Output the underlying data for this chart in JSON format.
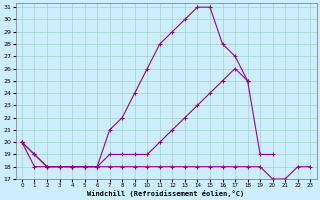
{
  "xlabel": "Windchill (Refroidissement éolien,°C)",
  "x": [
    0,
    1,
    2,
    3,
    4,
    5,
    6,
    7,
    8,
    9,
    10,
    11,
    12,
    13,
    14,
    15,
    16,
    17,
    18,
    19,
    20,
    21,
    22,
    23
  ],
  "line1": [
    20,
    19,
    18,
    18,
    18,
    18,
    18,
    21,
    22,
    24,
    26,
    28,
    29,
    30,
    31,
    31,
    28,
    27,
    25,
    null,
    null,
    null,
    null,
    null
  ],
  "line2": [
    20,
    19,
    18,
    18,
    18,
    18,
    18,
    19,
    19,
    19,
    19,
    20,
    21,
    22,
    23,
    24,
    25,
    26,
    25,
    19,
    19,
    null,
    null,
    null
  ],
  "line3": [
    20,
    18,
    18,
    18,
    18,
    18,
    18,
    18,
    18,
    18,
    18,
    18,
    18,
    18,
    18,
    18,
    18,
    18,
    18,
    18,
    17,
    17,
    18,
    18
  ],
  "ylim": [
    17,
    31
  ],
  "xlim": [
    -0.5,
    23.5
  ],
  "yticks": [
    17,
    18,
    19,
    20,
    21,
    22,
    23,
    24,
    25,
    26,
    27,
    28,
    29,
    30,
    31
  ],
  "xticks": [
    0,
    1,
    2,
    3,
    4,
    5,
    6,
    7,
    8,
    9,
    10,
    11,
    12,
    13,
    14,
    15,
    16,
    17,
    18,
    19,
    20,
    21,
    22,
    23
  ],
  "line_color": "#990099",
  "bg_color": "#cceeff",
  "grid_color": "#99ccbb",
  "figsize": [
    3.2,
    2.0
  ],
  "dpi": 100
}
